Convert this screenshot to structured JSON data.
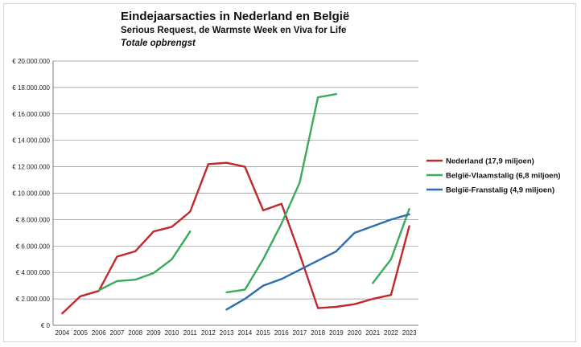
{
  "chart_data": {
    "type": "line",
    "title": "Eindejaarsacties in Nederland en België",
    "subtitle": "Serious Request, de Warmste Week en Viva for Life",
    "subtitle2": "Totale opbrengst",
    "xlabel": "",
    "ylabel": "",
    "ylim": [
      0,
      20000000
    ],
    "yticks": [
      {
        "value": 0,
        "label": "€ 0"
      },
      {
        "value": 2000000,
        "label": "€ 2.000.000"
      },
      {
        "value": 4000000,
        "label": "€ 4.000.000"
      },
      {
        "value": 6000000,
        "label": "€ 6.000.000"
      },
      {
        "value": 8000000,
        "label": "€ 8.000.000"
      },
      {
        "value": 10000000,
        "label": "€ 10.000.000"
      },
      {
        "value": 12000000,
        "label": "€ 12.000.000"
      },
      {
        "value": 14000000,
        "label": "€ 14.000.000"
      },
      {
        "value": 16000000,
        "label": "€ 16.000.000"
      },
      {
        "value": 18000000,
        "label": "€ 18.000.000"
      },
      {
        "value": 20000000,
        "label": "€ 20.000.000"
      }
    ],
    "grid": true,
    "legend_position": "right",
    "categories": [
      "2004",
      "2005",
      "2006",
      "2007",
      "2008",
      "2009",
      "2010",
      "2011",
      "2012",
      "2013",
      "2014",
      "2015",
      "2016",
      "2017",
      "2018",
      "2019",
      "2020",
      "2021",
      "2022",
      "2023"
    ],
    "series": [
      {
        "name": "Nederland (17,9 miljoen)",
        "color": "#c0282b",
        "values": [
          900000,
          2200000,
          2600000,
          5200000,
          5600000,
          7100000,
          7450000,
          8600000,
          12200000,
          12300000,
          12000000,
          8700000,
          9200000,
          5400000,
          1300000,
          1400000,
          1600000,
          2000000,
          2300000,
          7500000
        ]
      },
      {
        "name": "België-Vlaamstalig (6,8 miljoen)",
        "color": "#3aaa5c",
        "values": [
          null,
          null,
          2650000,
          3350000,
          3450000,
          3950000,
          5000000,
          7100000,
          null,
          2500000,
          2700000,
          5000000,
          7700000,
          10800000,
          17250000,
          17500000,
          null,
          3200000,
          5000000,
          8800000
        ]
      },
      {
        "name": "België-Franstalig (4,9 miljoen)",
        "color": "#2a6fb0",
        "values": [
          null,
          null,
          null,
          null,
          null,
          null,
          null,
          null,
          null,
          1200000,
          2000000,
          3000000,
          3500000,
          4200000,
          4900000,
          5600000,
          7000000,
          7500000,
          8000000,
          8400000
        ]
      }
    ]
  }
}
